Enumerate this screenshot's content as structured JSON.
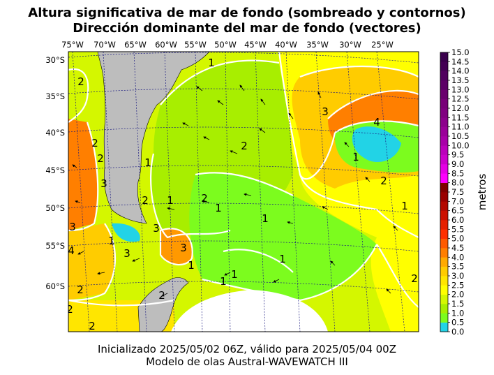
{
  "title": {
    "line1": "Altura significativa de mar de fondo (sombreado y contornos)",
    "line2": "Dirección dominante del mar de fondo (vectores)"
  },
  "footer": {
    "line1": "Inicializado 2025/05/02 06Z, válido para 2025/05/04 00Z",
    "line2": "Modelo de olas Austral-WAVEWATCH III"
  },
  "map": {
    "lon_labels": [
      "75°W",
      "70°W",
      "65°W",
      "60°W",
      "55°W",
      "50°W",
      "45°W",
      "40°W",
      "35°W",
      "30°W",
      "25°W"
    ],
    "lat_labels": [
      "30°S",
      "35°S",
      "40°S",
      "45°S",
      "50°S",
      "55°S",
      "60°S"
    ],
    "contour_labels": [
      "1",
      "2",
      "2",
      "1",
      "3",
      "4",
      "1",
      "2",
      "1",
      "2",
      "1",
      "1",
      "1",
      "3",
      "3",
      "2",
      "1",
      "2",
      "1",
      "2",
      "2",
      "3",
      "1",
      "2",
      "2",
      "1",
      "1",
      "2",
      "2",
      "3",
      "3",
      "4"
    ],
    "colors": {
      "land": "#bdbdbd",
      "ice_white": "#ffffff",
      "contour": "#ffffff",
      "grid": "#1a1a80"
    }
  },
  "colorbar": {
    "label": "metros",
    "ticks": [
      "0.0",
      "0.5",
      "1.0",
      "1.5",
      "2.0",
      "2.5",
      "3.0",
      "3.5",
      "4.0",
      "4.5",
      "5.0",
      "5.5",
      "6.0",
      "6.5",
      "7.0",
      "7.5",
      "8.0",
      "8.5",
      "9.0",
      "9.5",
      "10.0",
      "10.5",
      "11.0",
      "11.5",
      "12.0",
      "12.5",
      "13.0",
      "13.5",
      "14.0",
      "14.5",
      "15.0"
    ],
    "colors": [
      "#22d3e6",
      "#7cfc1e",
      "#a8ee00",
      "#d4f700",
      "#ffff00",
      "#ffe600",
      "#ffcc00",
      "#ffaa00",
      "#ff7f00",
      "#ff5a00",
      "#ff3000",
      "#e62000",
      "#cc1000",
      "#b30800",
      "#990000",
      "#800000",
      "#ff00ff",
      "#e600e6",
      "#cc00cc",
      "#bb00bb",
      "#a800a8",
      "#9a0099",
      "#8c008c",
      "#800080",
      "#780078",
      "#6a006e",
      "#5c0066",
      "#50005e",
      "#440054",
      "#3a004c"
    ]
  }
}
